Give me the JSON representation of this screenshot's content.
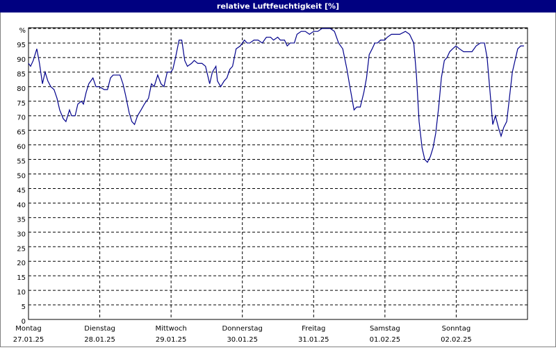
{
  "chart_data": {
    "type": "line",
    "title": "relative Luftfeuchtigkeit [%]",
    "xlim": [
      0,
      168
    ],
    "ylim": [
      0,
      100
    ],
    "yticks": [
      0,
      5,
      10,
      15,
      20,
      25,
      30,
      35,
      40,
      45,
      50,
      55,
      60,
      65,
      70,
      75,
      80,
      85,
      90,
      95,
      {
        "value": 100,
        "label": "%"
      }
    ],
    "xticks": [
      {
        "value": 0,
        "label": "Montag"
      },
      {
        "value": 24,
        "label": "Dienstag"
      },
      {
        "value": 48,
        "label": "Mittwoch"
      },
      {
        "value": 72,
        "label": "Donnerstag"
      },
      {
        "value": 96,
        "label": "Freitag"
      },
      {
        "value": 120,
        "label": "Samstag"
      },
      {
        "value": 144,
        "label": "Sonntag"
      }
    ],
    "xtick_dates": [
      "27.01.25",
      "28.01.25",
      "29.01.25",
      "30.01.25",
      "31.01.25",
      "01.02.25",
      "02.02.25"
    ],
    "grid": true,
    "x": [
      0,
      0.7,
      1.6,
      2.8,
      3.7,
      4.7,
      5.6,
      6.5,
      7.5,
      8.6,
      9.6,
      10.5,
      11.7,
      12.6,
      13.8,
      14.5,
      15.7,
      16.6,
      17.8,
      18.5,
      19.4,
      20.3,
      21.7,
      22.7,
      23.8,
      25.5,
      26.6,
      27.6,
      28.5,
      29.7,
      30.8,
      31.8,
      32.7,
      33.9,
      34.8,
      35.7,
      36.7,
      37.9,
      39.0,
      40.4,
      41.4,
      42.3,
      43.5,
      44.6,
      45.6,
      46.7,
      47.9,
      48.6,
      49.5,
      50.7,
      51.6,
      52.6,
      53.5,
      54.9,
      55.8,
      57.0,
      58.4,
      59.6,
      61.0,
      61.9,
      63.1,
      63.6,
      64.7,
      65.9,
      66.8,
      67.8,
      68.7,
      69.9,
      71.3,
      72.7,
      73.6,
      74.5,
      75.9,
      77.3,
      78.7,
      80.1,
      81.5,
      82.5,
      83.9,
      84.8,
      86.2,
      87.1,
      88.1,
      89.5,
      90.4,
      91.8,
      93.2,
      94.6,
      96.0,
      97.4,
      98.8,
      100.2,
      101.6,
      103.0,
      104.4,
      105.8,
      107.2,
      108.2,
      109.6,
      110.5,
      111.7,
      112.9,
      113.8,
      114.7,
      115.7,
      116.6,
      117.5,
      118.5,
      119.9,
      120.8,
      122.2,
      123.6,
      125.0,
      126.9,
      128.3,
      129.7,
      130.6,
      131.5,
      132.5,
      133.4,
      134.3,
      135.3,
      136.2,
      137.1,
      138.1,
      139.0,
      140.0,
      140.9,
      141.8,
      142.8,
      143.9,
      145.1,
      146.5,
      147.9,
      149.3,
      150.7,
      152.1,
      153.5,
      154.4,
      155.4,
      156.3,
      157.2,
      158.2,
      159.1,
      160.0,
      161.0,
      161.9,
      162.9,
      163.8,
      164.7,
      165.7,
      166.8
    ],
    "series": [
      {
        "color": "#00008b",
        "values": [
          88,
          87,
          89,
          93,
          88,
          81,
          85,
          82,
          80,
          79,
          76,
          72,
          69,
          68,
          72,
          70,
          70,
          74,
          75,
          74,
          78,
          81,
          83,
          80,
          80,
          79,
          79,
          83,
          84,
          84,
          84,
          81,
          77,
          71,
          68,
          67,
          70,
          72,
          74,
          76,
          81,
          80,
          84,
          81,
          80,
          85,
          85,
          86,
          90,
          96,
          96,
          89,
          87,
          88,
          89,
          88,
          88,
          87,
          81,
          85,
          87,
          82,
          80,
          82,
          83,
          86,
          87,
          93,
          94,
          96,
          95,
          95,
          96,
          96,
          95,
          97,
          97,
          96,
          97,
          96,
          96,
          94,
          95,
          95,
          98,
          99,
          99,
          98,
          99,
          99,
          100,
          100,
          100,
          99,
          95,
          93,
          86,
          80,
          72,
          73,
          73,
          78,
          83,
          91,
          93,
          95,
          95,
          96,
          96,
          97,
          98,
          98,
          98,
          99,
          98,
          95,
          84,
          68,
          59,
          55,
          54,
          56,
          59,
          64,
          73,
          83,
          89,
          90,
          92,
          93,
          94,
          93,
          92,
          92,
          92,
          94,
          95,
          95,
          90,
          78,
          67,
          70,
          66,
          63,
          66,
          68,
          76,
          85,
          89,
          93,
          94,
          94
        ]
      }
    ]
  }
}
